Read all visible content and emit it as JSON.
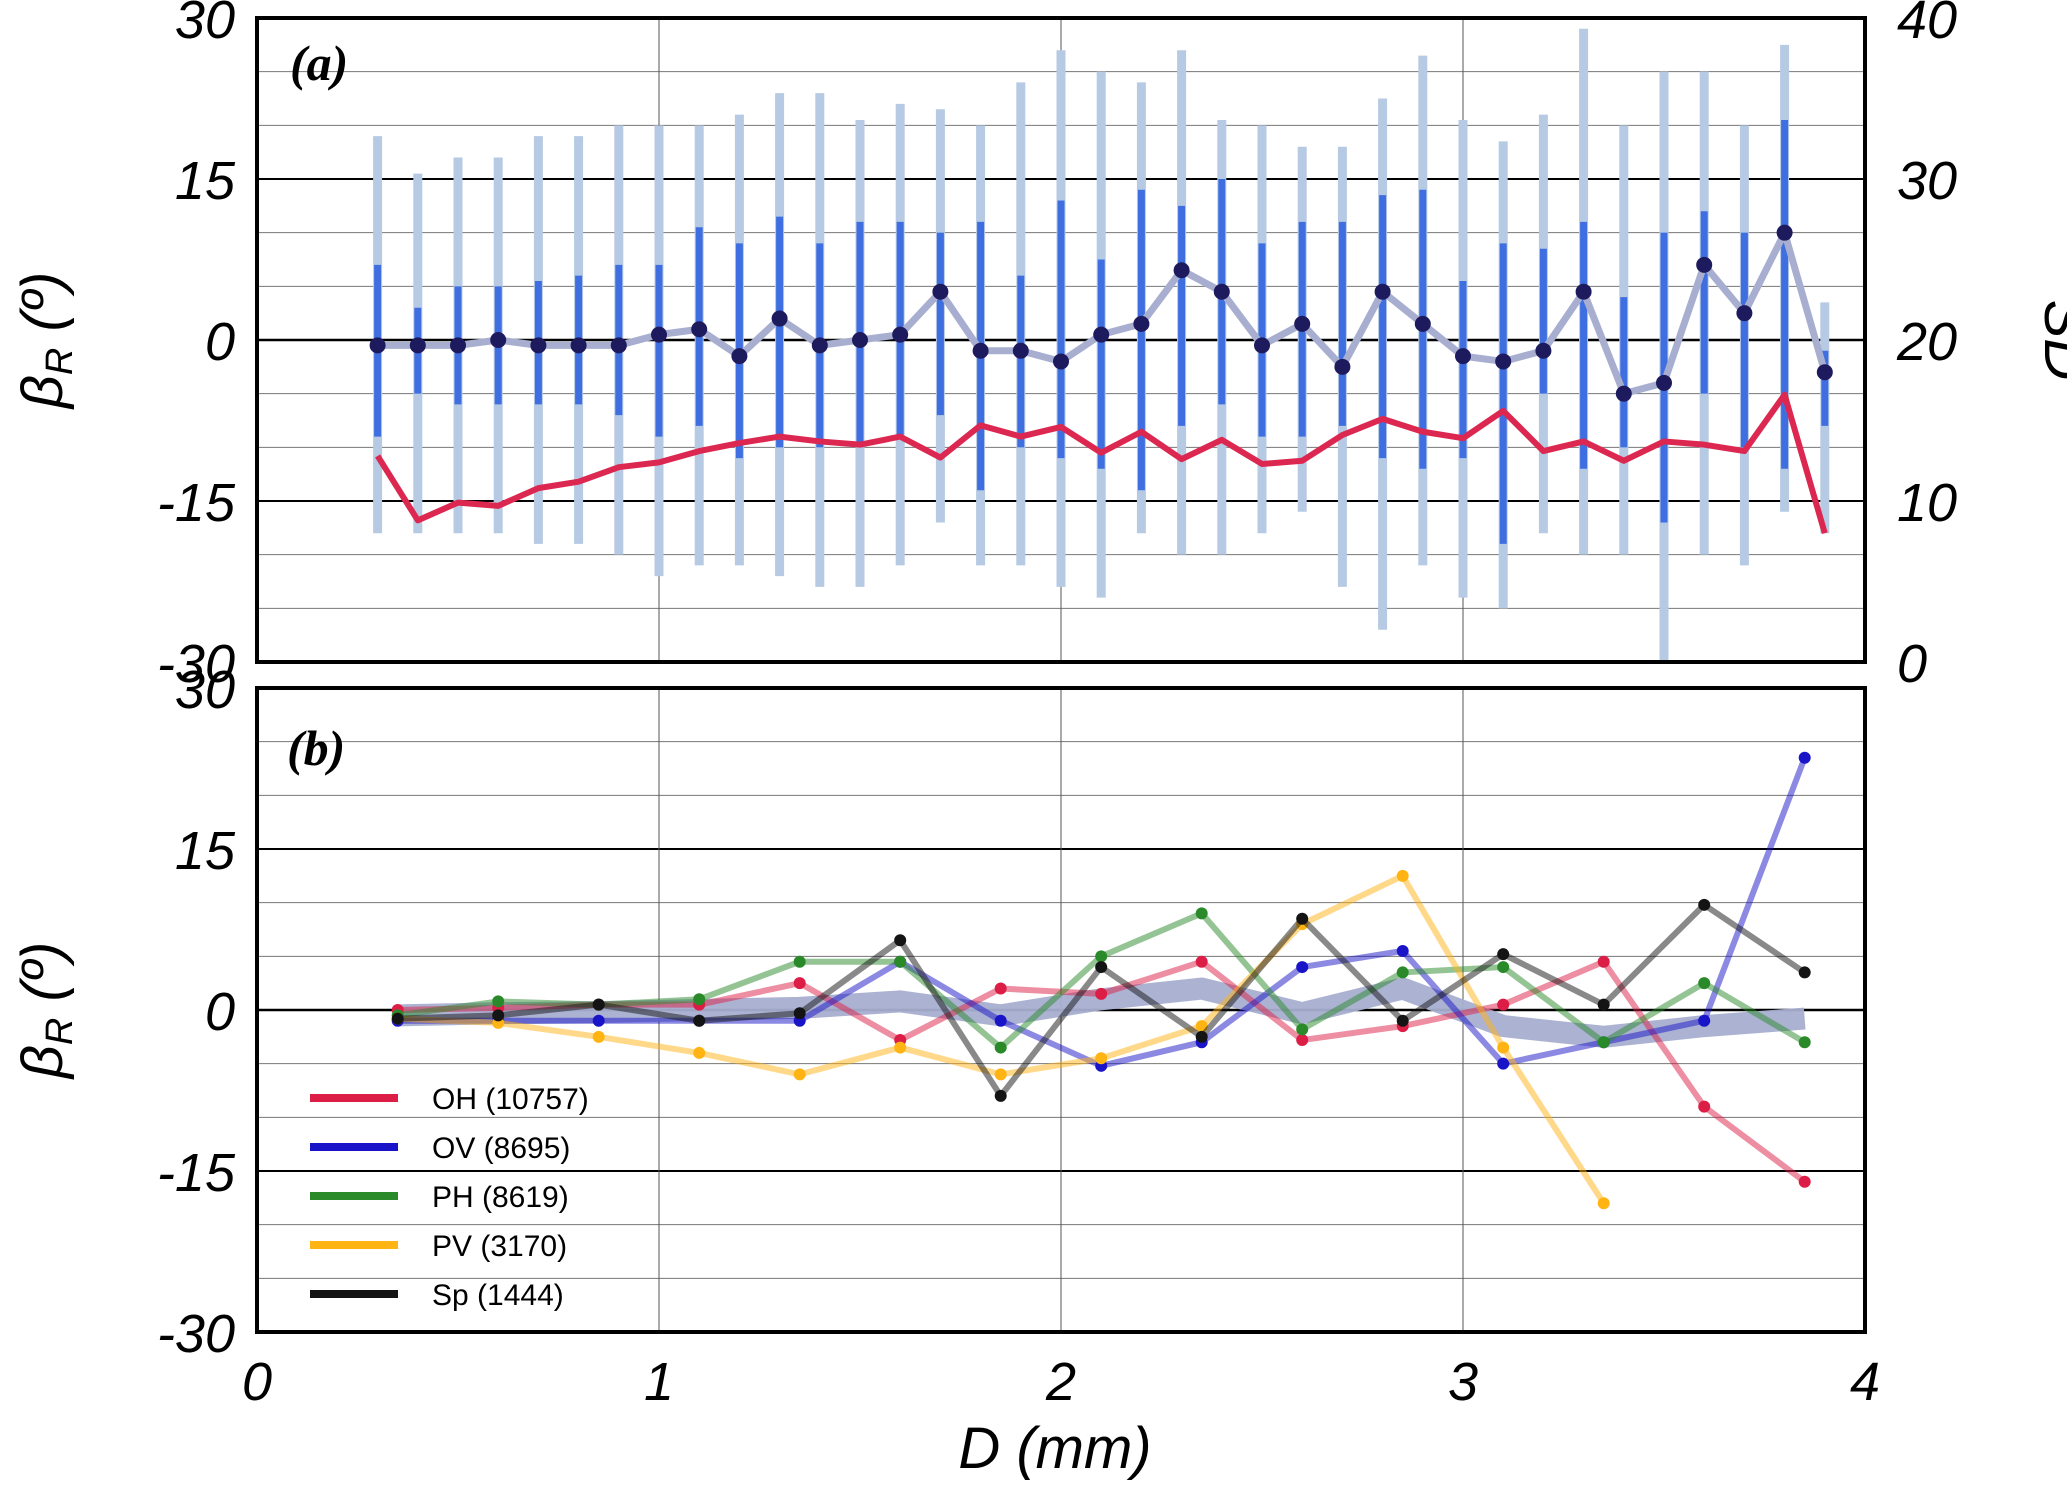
{
  "chart_data": [
    {
      "panel": "(a)",
      "type": "line",
      "xlabel": "",
      "ylabel": "β_R (º)",
      "ylabel_right": "SD",
      "xlim": [
        0,
        4
      ],
      "ylim": [
        -30,
        30
      ],
      "ylim_right": [
        0,
        40
      ],
      "yticks": [
        30,
        15,
        0,
        -15,
        -30
      ],
      "yticks_right": [
        40,
        30,
        20,
        10,
        0
      ],
      "grid": true,
      "mean_series": {
        "x": [
          0.3,
          0.4,
          0.5,
          0.6,
          0.7,
          0.8,
          0.9,
          1.0,
          1.1,
          1.2,
          1.3,
          1.4,
          1.5,
          1.6,
          1.7,
          1.8,
          1.9,
          2.0,
          2.1,
          2.2,
          2.3,
          2.4,
          2.5,
          2.6,
          2.7,
          2.8,
          2.9,
          3.0,
          3.1,
          3.2,
          3.3,
          3.4,
          3.5,
          3.6,
          3.7,
          3.8,
          3.9
        ],
        "y": [
          -0.5,
          -0.5,
          -0.5,
          0,
          -0.5,
          -0.5,
          -0.5,
          0.5,
          1,
          -1.5,
          2,
          -0.5,
          0,
          0.5,
          4.5,
          -1,
          -1,
          -2,
          0.5,
          1.5,
          6.5,
          4.5,
          -0.5,
          1.5,
          -2.5,
          4.5,
          1.5,
          -1.5,
          -2,
          -1,
          4.5,
          -5,
          -4,
          7,
          2.5,
          10,
          -3
        ]
      },
      "inner_range": {
        "lower": [
          -9,
          -5,
          -6,
          -6,
          -6,
          -6,
          -7,
          -9,
          -8,
          -11,
          -10,
          -10,
          -10,
          -9,
          -7,
          -14,
          -10,
          -11,
          -12,
          -14,
          -8,
          -6,
          -9,
          -9,
          -8,
          -11,
          -12,
          -11,
          -19,
          -5,
          -12,
          -10,
          -17,
          -5,
          -10,
          -12,
          -8
        ],
        "upper": [
          7,
          3,
          5,
          5,
          5.5,
          6,
          7,
          7,
          10.5,
          9,
          11.5,
          9,
          11,
          11,
          10,
          11,
          6,
          13,
          7.5,
          14,
          12.5,
          15,
          9,
          11,
          11,
          13.5,
          14,
          5.5,
          9,
          8.5,
          11,
          4,
          10,
          12,
          10,
          20.5,
          -1
        ]
      },
      "outer_range": {
        "lower": [
          -18,
          -18,
          -18,
          -18,
          -19,
          -19,
          -20,
          -22,
          -21,
          -21,
          -22,
          -23,
          -23,
          -21,
          -17,
          -21,
          -21,
          -23,
          -24,
          -18,
          -20,
          -20,
          -18,
          -16,
          -23,
          -27,
          -21,
          -24,
          -25,
          -18,
          -20,
          -20,
          -30,
          -20,
          -21,
          -16,
          -18
        ],
        "upper": [
          19,
          15.5,
          17,
          17,
          19,
          19,
          20,
          20,
          20,
          21,
          23,
          23,
          20.5,
          22,
          21.5,
          20,
          24,
          27,
          25,
          24,
          27,
          20.5,
          20,
          18,
          18,
          22.5,
          26.5,
          20.5,
          18.5,
          21,
          29,
          20,
          25,
          25,
          20,
          27.5,
          3.5
        ]
      },
      "sd_series": {
        "x": [
          0.3,
          0.4,
          0.5,
          0.6,
          0.7,
          0.8,
          0.9,
          1.0,
          1.1,
          1.2,
          1.3,
          1.4,
          1.5,
          1.6,
          1.7,
          1.8,
          1.9,
          2.0,
          2.1,
          2.2,
          2.3,
          2.4,
          2.5,
          2.6,
          2.7,
          2.8,
          2.9,
          3.0,
          3.1,
          3.2,
          3.3,
          3.4,
          3.5,
          3.6,
          3.7,
          3.8,
          3.9
        ],
        "y": [
          12.8,
          8.8,
          9.9,
          9.7,
          10.8,
          11.2,
          12.1,
          12.4,
          13.1,
          13.6,
          14,
          13.7,
          13.5,
          14,
          12.7,
          14.7,
          14,
          14.6,
          13,
          14.3,
          12.6,
          13.8,
          12.3,
          12.5,
          14.1,
          15.1,
          14.3,
          13.9,
          15.6,
          13.1,
          13.7,
          12.5,
          13.7,
          13.5,
          13.1,
          16.6,
          8
        ]
      },
      "colors": {
        "mean_line": "#a8aed0",
        "mean_marker": "#1e1a5e",
        "inner_bar": "#3f6ee0",
        "outer_bar": "#b6cae4",
        "sd_line": "#dc2850"
      }
    },
    {
      "panel": "(b)",
      "type": "line",
      "xlabel": "D (mm)",
      "ylabel": "β_R (º)",
      "xlim": [
        0,
        4
      ],
      "xticks": [
        0,
        1,
        2,
        3,
        4
      ],
      "ylim": [
        -30,
        30
      ],
      "yticks": [
        30,
        15,
        0,
        -15,
        -30
      ],
      "grid": true,
      "legend_position": "lower-left",
      "average_band": {
        "x": [
          0.35,
          0.6,
          0.85,
          1.1,
          1.35,
          1.6,
          1.85,
          2.1,
          2.35,
          2.6,
          2.85,
          3.1,
          3.35,
          3.6,
          3.85
        ],
        "y": [
          -0.5,
          -0.3,
          -0.2,
          0,
          0.2,
          0.8,
          -0.5,
          1,
          2,
          -0.3,
          2,
          -1.5,
          -2.5,
          -1.5,
          -0.8
        ],
        "color": "#a8aed0"
      },
      "series": [
        {
          "name": "OH (10757)",
          "color": "#dc1e46",
          "x": [
            0.35,
            0.6,
            0.85,
            1.1,
            1.35,
            1.6,
            1.85,
            2.1,
            2.35,
            2.6,
            2.85,
            3.1,
            3.35,
            3.6,
            3.85
          ],
          "y": [
            0,
            0.2,
            0.5,
            0.5,
            2.5,
            -2.8,
            2,
            1.5,
            4.5,
            -2.8,
            -1.5,
            0.5,
            4.5,
            -9,
            -16
          ]
        },
        {
          "name": "OV (8695)",
          "color": "#1a14c8",
          "x": [
            0.35,
            0.6,
            0.85,
            1.1,
            1.35,
            1.6,
            1.85,
            2.1,
            2.35,
            2.6,
            2.85,
            3.1,
            3.35,
            3.6,
            3.85
          ],
          "y": [
            -1,
            -1,
            -1,
            -1,
            -1,
            4.5,
            -1,
            -5.2,
            -3,
            4,
            5.5,
            -5,
            -3,
            -1,
            23.5
          ]
        },
        {
          "name": "PH (8619)",
          "color": "#2a8a2a",
          "x": [
            0.35,
            0.6,
            0.85,
            1.1,
            1.35,
            1.6,
            1.85,
            2.1,
            2.35,
            2.6,
            2.85,
            3.1,
            3.35,
            3.6,
            3.85
          ],
          "y": [
            -0.5,
            0.8,
            0.5,
            1,
            4.5,
            4.5,
            -3.5,
            5,
            9,
            -1.8,
            3.5,
            4,
            -3,
            2.5,
            -3
          ]
        },
        {
          "name": "PV (3170)",
          "color": "#ffb414",
          "x": [
            0.35,
            0.6,
            0.85,
            1.1,
            1.35,
            1.6,
            1.85,
            2.1,
            2.35,
            2.6,
            2.85,
            3.1,
            3.35
          ],
          "y": [
            -0.8,
            -1.2,
            -2.5,
            -4,
            -6,
            -3.5,
            -6,
            -4.5,
            -1.5,
            8,
            12.5,
            -3.5,
            -18
          ]
        },
        {
          "name": "Sp (1444)",
          "color": "#141414",
          "x": [
            0.35,
            0.6,
            0.85,
            1.1,
            1.35,
            1.6,
            1.85,
            2.1,
            2.35,
            2.6,
            2.85,
            3.1,
            3.35,
            3.6,
            3.85
          ],
          "y": [
            -0.8,
            -0.5,
            0.5,
            -1,
            -0.3,
            6.5,
            -8,
            4,
            -2.5,
            8.5,
            -1,
            5.2,
            0.5,
            9.8,
            3.5
          ]
        }
      ]
    }
  ]
}
